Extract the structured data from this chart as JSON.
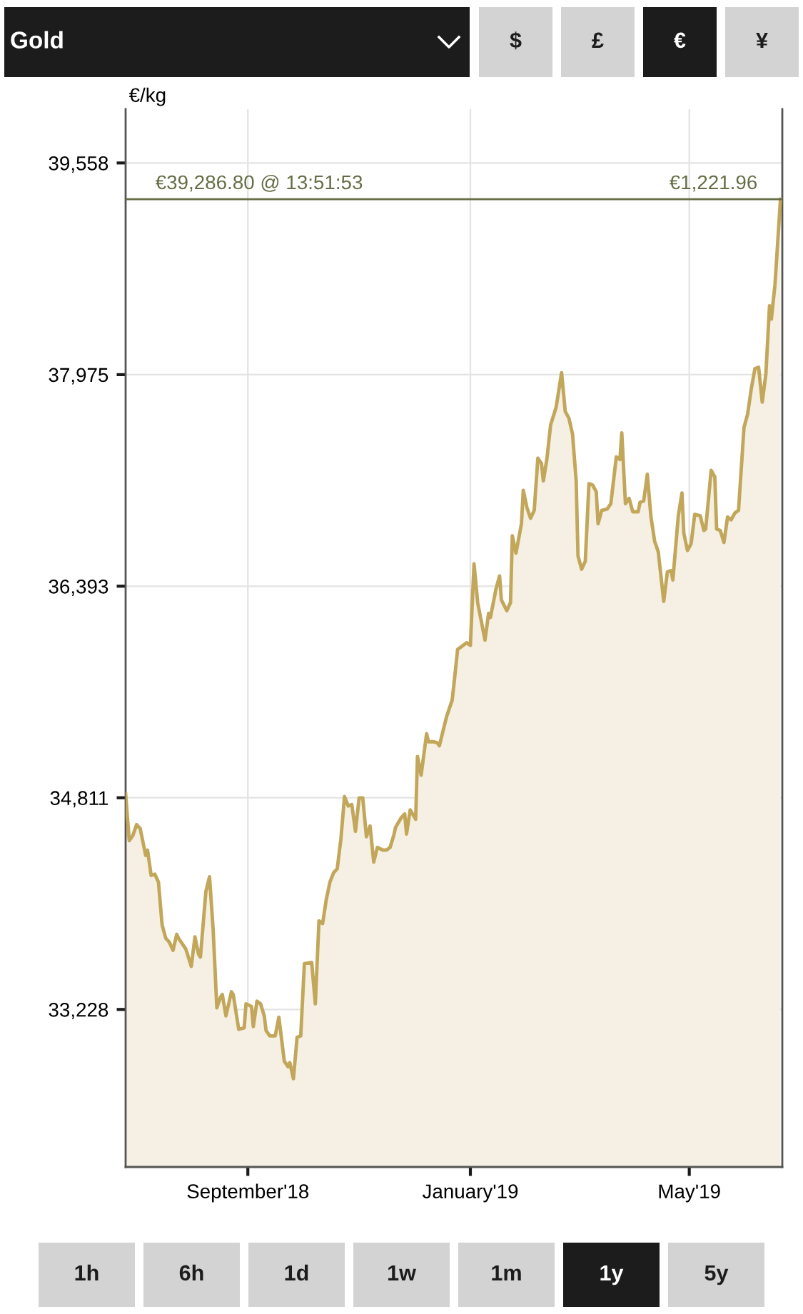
{
  "chart_data": {
    "type": "area",
    "title": "Gold",
    "ylabel": "€/kg",
    "x": [
      "2018-06-26",
      "2018-06-28",
      "2018-06-30",
      "2018-07-02",
      "2018-07-04",
      "2018-07-07",
      "2018-07-08",
      "2018-07-10",
      "2018-07-12",
      "2018-07-14",
      "2018-07-16",
      "2018-07-18",
      "2018-07-20",
      "2018-07-22",
      "2018-07-24",
      "2018-07-25",
      "2018-07-29",
      "2018-08-01",
      "2018-08-03",
      "2018-08-05",
      "2018-08-06",
      "2018-08-09",
      "2018-08-11",
      "2018-08-13",
      "2018-08-15",
      "2018-08-17",
      "2018-08-18",
      "2018-08-20",
      "2018-08-23",
      "2018-08-24",
      "2018-08-27",
      "2018-08-30",
      "2018-08-31",
      "2018-09-03",
      "2018-09-04",
      "2018-09-06",
      "2018-09-08",
      "2018-09-10",
      "2018-09-11",
      "2018-09-13",
      "2018-09-16",
      "2018-09-18",
      "2018-09-21",
      "2018-09-23",
      "2018-09-24",
      "2018-09-26",
      "2018-09-28",
      "2018-09-30",
      "2018-10-02",
      "2018-10-06",
      "2018-10-08",
      "2018-10-10",
      "2018-10-12",
      "2018-10-14",
      "2018-10-16",
      "2018-10-18",
      "2018-10-20",
      "2018-10-22",
      "2018-10-24",
      "2018-10-26",
      "2018-10-28",
      "2018-10-30",
      "2018-11-01",
      "2018-11-03",
      "2018-11-05",
      "2018-11-07",
      "2018-11-09",
      "2018-11-11",
      "2018-11-14",
      "2018-11-16",
      "2018-11-18",
      "2018-11-20",
      "2018-11-21",
      "2018-11-24",
      "2018-11-26",
      "2018-11-27",
      "2018-11-29",
      "2018-12-02",
      "2018-12-03",
      "2018-12-05",
      "2018-12-08",
      "2018-12-09",
      "2018-12-12",
      "2018-12-14",
      "2018-12-15",
      "2018-12-17",
      "2018-12-19",
      "2018-12-22",
      "2018-12-23",
      "2018-12-24",
      "2018-12-25",
      "2018-12-28",
      "2018-12-30",
      "2019-01-01",
      "2019-01-03",
      "2019-01-05",
      "2019-01-07",
      "2019-01-09",
      "2019-01-11",
      "2019-01-12",
      "2019-01-15",
      "2019-01-17",
      "2019-01-18",
      "2019-01-21",
      "2019-01-23",
      "2019-01-24",
      "2019-01-26",
      "2019-01-29",
      "2019-01-30",
      "2019-02-01",
      "2019-02-03",
      "2019-02-05",
      "2019-02-07",
      "2019-02-09",
      "2019-02-10",
      "2019-02-12",
      "2019-02-14",
      "2019-02-17",
      "2019-02-20",
      "2019-02-22",
      "2019-02-24",
      "2019-02-26",
      "2019-02-28",
      "2019-03-01",
      "2019-03-03",
      "2019-03-05",
      "2019-03-07",
      "2019-03-09",
      "2019-03-11",
      "2019-03-12",
      "2019-03-14",
      "2019-03-17",
      "2019-03-19",
      "2019-03-22",
      "2019-03-24",
      "2019-03-25",
      "2019-03-27",
      "2019-03-29",
      "2019-03-31",
      "2019-04-03",
      "2019-04-04",
      "2019-04-06",
      "2019-04-08",
      "2019-04-10",
      "2019-04-12",
      "2019-04-14",
      "2019-04-17",
      "2019-04-19",
      "2019-04-21",
      "2019-04-22",
      "2019-04-25",
      "2019-04-27",
      "2019-04-28",
      "2019-04-30",
      "2019-05-02",
      "2019-05-04",
      "2019-05-07",
      "2019-05-09",
      "2019-05-10",
      "2019-05-13",
      "2019-05-15",
      "2019-05-16",
      "2019-05-18",
      "2019-05-20",
      "2019-05-22",
      "2019-05-24",
      "2019-05-26",
      "2019-05-28",
      "2019-05-31",
      "2019-06-02",
      "2019-06-04",
      "2019-06-06",
      "2019-06-08",
      "2019-06-10",
      "2019-06-12",
      "2019-06-14",
      "2019-06-15",
      "2019-06-17",
      "2019-06-20"
    ],
    "series": [
      {
        "color": "#c2a75b",
        "values": [
          34840,
          34490,
          34530,
          34610,
          34580,
          34380,
          34420,
          34230,
          34240,
          34180,
          33860,
          33760,
          33730,
          33670,
          33790,
          33760,
          33680,
          33550,
          33770,
          33640,
          33620,
          34110,
          34220,
          33820,
          33240,
          33320,
          33340,
          33180,
          33360,
          33340,
          33080,
          33090,
          33270,
          33250,
          33100,
          33290,
          33270,
          33180,
          33070,
          33030,
          33030,
          33170,
          32840,
          32800,
          32830,
          32710,
          33020,
          33030,
          33570,
          33580,
          33270,
          33890,
          33870,
          34050,
          34180,
          34250,
          34280,
          34500,
          34820,
          34750,
          34760,
          34560,
          34810,
          34810,
          34520,
          34600,
          34330,
          34440,
          34420,
          34420,
          34440,
          34530,
          34590,
          34660,
          34690,
          34540,
          34720,
          34650,
          35120,
          34980,
          35290,
          35230,
          35230,
          35220,
          35200,
          35310,
          35420,
          35540,
          35660,
          35790,
          35920,
          35950,
          35970,
          35950,
          36560,
          36270,
          36130,
          35990,
          36190,
          36160,
          36370,
          36470,
          36290,
          36210,
          36270,
          36770,
          36640,
          36860,
          37110,
          36980,
          36900,
          36960,
          37350,
          37310,
          37180,
          37350,
          37600,
          37730,
          37990,
          37700,
          37650,
          37530,
          37180,
          36620,
          36520,
          36580,
          37160,
          37150,
          37100,
          36860,
          36960,
          36970,
          37010,
          37360,
          37340,
          37540,
          37010,
          37050,
          36950,
          36950,
          37020,
          37030,
          37230,
          36910,
          36730,
          36650,
          36280,
          36500,
          36510,
          36440,
          36920,
          37090,
          36790,
          36660,
          36710,
          36930,
          36920,
          36810,
          36820,
          37260,
          37210,
          36820,
          36810,
          36720,
          36910,
          36890,
          36940,
          36960,
          37580,
          37680,
          37870,
          38020,
          38030,
          37770,
          37980,
          38490,
          38390,
          38650,
          39286.8
        ]
      }
    ],
    "xlim": [
      "2018-06-26",
      "2019-06-21"
    ],
    "xticks": [
      {
        "value": "2018-09-01",
        "label": "September'18"
      },
      {
        "value": "2019-01-01",
        "label": "January'19"
      },
      {
        "value": "2019-05-01",
        "label": "May'19"
      }
    ],
    "ylim": [
      32050,
      39960
    ],
    "yticks": [
      {
        "value": 33228,
        "label": "33,228"
      },
      {
        "value": 34811,
        "label": "34,811"
      },
      {
        "value": 36393,
        "label": "36,393"
      },
      {
        "value": 37975,
        "label": "37,975"
      },
      {
        "value": 39558,
        "label": "39,558"
      }
    ],
    "grid": true,
    "ref_lines": [
      {
        "axis": "y",
        "value": 39286.8,
        "label": "€39,286.80 @ 13:51:53",
        "color": "#646d44"
      }
    ],
    "annotations": [
      "€1,221.96",
      "$",
      "£",
      "€",
      "¥",
      "1h",
      "6h",
      "1d",
      "1w",
      "1m",
      "1y",
      "5y"
    ]
  }
}
